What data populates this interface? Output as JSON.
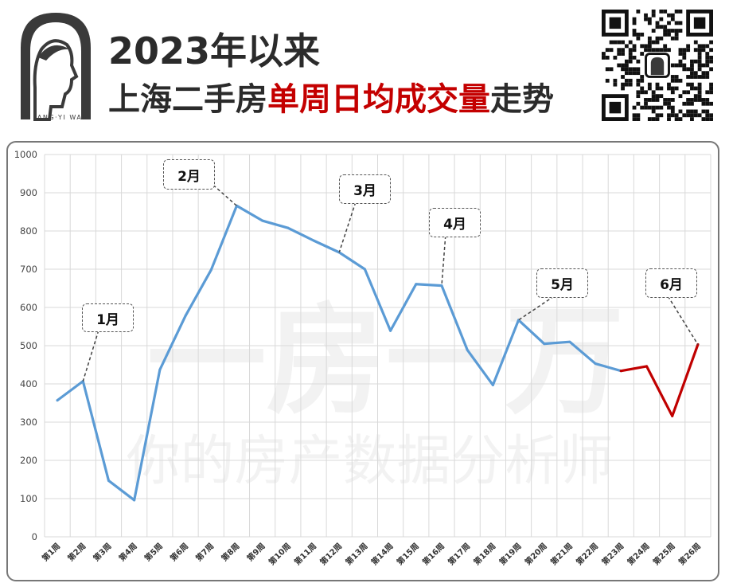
{
  "header": {
    "title_line1": "2023年以来",
    "title_line2_prefix": "上海二手房",
    "title_line2_highlight": "单周日均成交量",
    "title_line2_suffix": "走势"
  },
  "logo": {
    "caption": "YI FANG·YI WAN"
  },
  "watermark": {
    "line1": "一房一万",
    "line2": "你的房产数据分析师"
  },
  "colors": {
    "line_main": "#5b9bd5",
    "line_recent": "#c00000",
    "title_highlight": "#c40000"
  },
  "chart_data": {
    "type": "line",
    "categories": [
      "第1周",
      "第2周",
      "第3周",
      "第4周",
      "第5周",
      "第6周",
      "第7周",
      "第8周",
      "第9周",
      "第10周",
      "第11周",
      "第12周",
      "第13周",
      "第14周",
      "第15周",
      "第16周",
      "第17周",
      "第18周",
      "第19周",
      "第20周",
      "第21周",
      "第22周",
      "第23周",
      "第24周",
      "第25周",
      "第26周"
    ],
    "values": [
      357,
      407,
      147,
      96,
      437,
      578,
      698,
      866,
      827,
      808,
      775,
      744,
      700,
      539,
      661,
      657,
      489,
      397,
      567,
      505,
      510,
      453,
      434,
      446,
      316,
      503
    ],
    "highlight_from_index": 22,
    "ylim": [
      0,
      1000
    ],
    "yticks": [
      0,
      100,
      200,
      300,
      400,
      500,
      600,
      700,
      800,
      900,
      1000
    ],
    "grid": true,
    "annotations": [
      {
        "label": "1月",
        "index": 1
      },
      {
        "label": "2月",
        "index": 7
      },
      {
        "label": "3月",
        "index": 11
      },
      {
        "label": "4月",
        "index": 15
      },
      {
        "label": "5月",
        "index": 18
      },
      {
        "label": "6月",
        "index": 25
      }
    ]
  }
}
